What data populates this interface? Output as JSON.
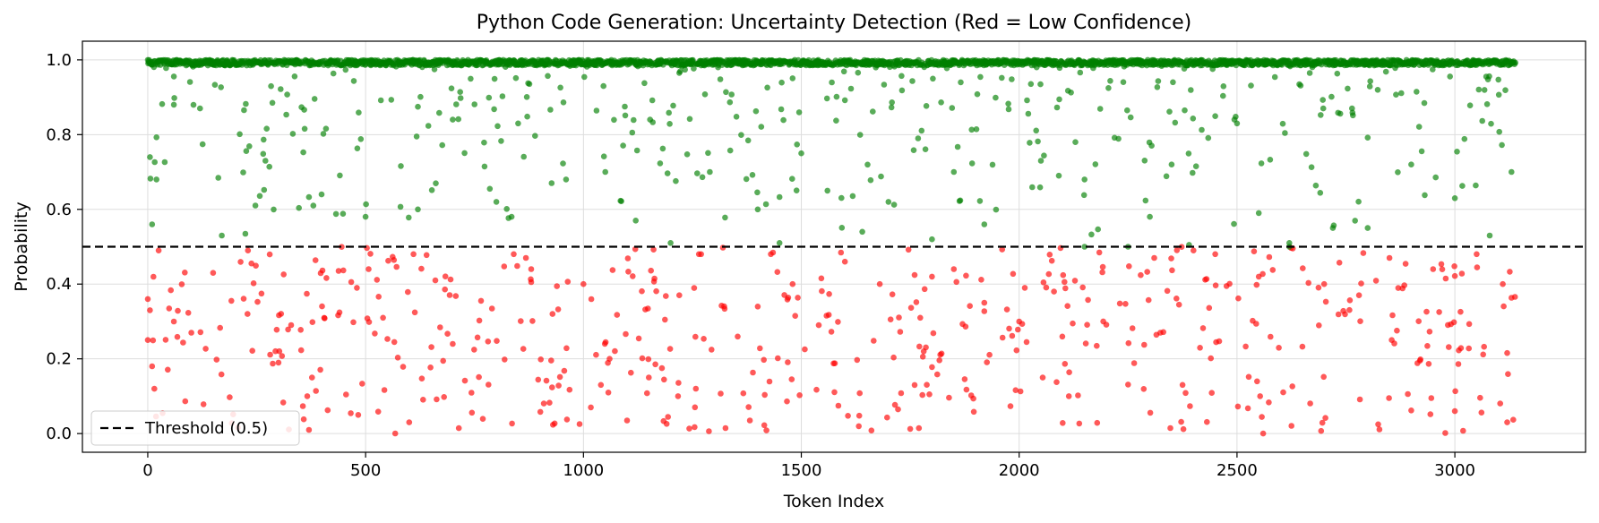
{
  "chart_data": {
    "type": "scatter",
    "title": "Python Code Generation: Uncertainty Detection (Red = Low Confidence)",
    "xlabel": "Token Index",
    "ylabel": "Probability",
    "xlim": [
      -150,
      3300
    ],
    "ylim": [
      -0.05,
      1.05
    ],
    "x_ticks": [
      0,
      500,
      1000,
      1500,
      2000,
      2500,
      3000
    ],
    "y_ticks": [
      0.0,
      0.2,
      0.4,
      0.6,
      0.8,
      1.0
    ],
    "x_tick_labels": [
      "0",
      "500",
      "1000",
      "1500",
      "2000",
      "2500",
      "3000"
    ],
    "y_tick_labels": [
      "0.0",
      "0.2",
      "0.4",
      "0.6",
      "0.8",
      "1.0"
    ],
    "grid": true,
    "n_tokens": 3140,
    "threshold": 0.5,
    "threshold_label": "Threshold (0.5)",
    "legend_position": "lower-left",
    "colors": {
      "high_confidence": "#008000",
      "low_confidence": "#ff0000",
      "threshold": "#000000"
    },
    "series": [
      {
        "color": "green",
        "rule": "probability >= 0.5",
        "points_sample": [
          [
            0,
            1.0
          ],
          [
            5,
            0.74
          ],
          [
            10,
            0.56
          ],
          [
            20,
            0.68
          ],
          [
            60,
            0.88
          ],
          [
            120,
            0.87
          ],
          [
            170,
            0.53
          ],
          [
            270,
            0.73
          ],
          [
            380,
            0.61
          ],
          [
            500,
            0.58
          ],
          [
            620,
            0.6
          ],
          [
            700,
            0.84
          ],
          [
            800,
            0.62
          ],
          [
            850,
            0.83
          ],
          [
            960,
            0.68
          ],
          [
            1050,
            0.7
          ],
          [
            1120,
            0.57
          ],
          [
            1200,
            0.51
          ],
          [
            1290,
            0.7
          ],
          [
            1400,
            0.6
          ],
          [
            1450,
            0.51
          ],
          [
            1500,
            0.75
          ],
          [
            1560,
            0.65
          ],
          [
            1640,
            0.54
          ],
          [
            1700,
            0.62
          ],
          [
            1800,
            0.52
          ],
          [
            1850,
            0.7
          ],
          [
            1920,
            0.56
          ],
          [
            2050,
            0.73
          ],
          [
            2150,
            0.68
          ],
          [
            2300,
            0.58
          ],
          [
            2350,
            0.72
          ],
          [
            2500,
            0.83
          ],
          [
            2550,
            0.59
          ],
          [
            2620,
            0.51
          ],
          [
            2720,
            0.55
          ],
          [
            2800,
            0.55
          ],
          [
            2900,
            0.72
          ],
          [
            3000,
            0.63
          ],
          [
            3080,
            0.53
          ],
          [
            3130,
            0.7
          ]
        ]
      },
      {
        "color": "red",
        "rule": "probability < 0.5",
        "points_sample": [
          [
            0,
            0.36
          ],
          [
            5,
            0.33
          ],
          [
            10,
            0.18
          ],
          [
            15,
            0.12
          ],
          [
            25,
            0.49
          ],
          [
            60,
            0.3
          ],
          [
            100,
            0.27
          ],
          [
            150,
            0.43
          ],
          [
            230,
            0.49
          ],
          [
            300,
            0.19
          ],
          [
            370,
            0.01
          ],
          [
            480,
            0.39
          ],
          [
            540,
            0.31
          ],
          [
            600,
            0.03
          ],
          [
            610,
            0.48
          ],
          [
            660,
            0.41
          ],
          [
            700,
            0.24
          ],
          [
            840,
            0.48
          ],
          [
            880,
            0.44
          ],
          [
            1000,
            0.4
          ],
          [
            1060,
            0.2
          ],
          [
            1150,
            0.15
          ],
          [
            1220,
            0.37
          ],
          [
            1270,
            0.48
          ],
          [
            1400,
            0.34
          ],
          [
            1430,
            0.48
          ],
          [
            1480,
            0.4
          ],
          [
            1540,
            0.29
          ],
          [
            1600,
            0.46
          ],
          [
            1680,
            0.4
          ],
          [
            1760,
            0.13
          ],
          [
            1800,
            0.42
          ],
          [
            1850,
            0.44
          ],
          [
            1920,
            0.35
          ],
          [
            2000,
            0.3
          ],
          [
            2080,
            0.38
          ],
          [
            2150,
            0.5
          ],
          [
            2250,
            0.5
          ],
          [
            2310,
            0.47
          ],
          [
            2400,
            0.49
          ],
          [
            2450,
            0.48
          ],
          [
            2550,
            0.42
          ],
          [
            2560,
            0.0
          ],
          [
            2620,
            0.5
          ],
          [
            2700,
            0.4
          ],
          [
            2780,
            0.37
          ],
          [
            2850,
            0.47
          ],
          [
            2950,
            0.44
          ],
          [
            3000,
            0.06
          ],
          [
            3050,
            0.48
          ],
          [
            3110,
            0.4
          ],
          [
            3120,
            0.03
          ]
        ]
      }
    ]
  }
}
